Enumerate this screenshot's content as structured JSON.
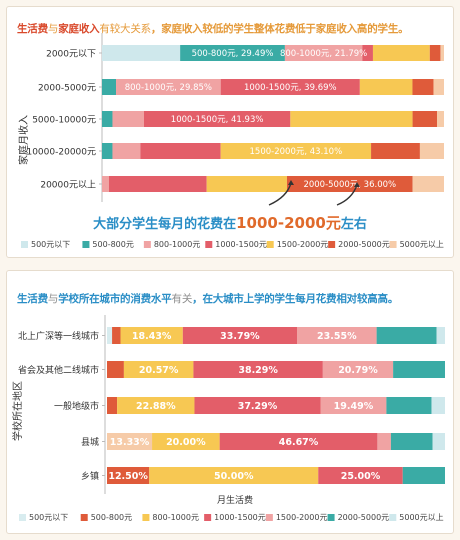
{
  "chart_data": [
    {
      "type": "bar",
      "stacked": "percent",
      "orientation": "horizontal",
      "headline_parts": [
        "生活费",
        "与",
        "家庭收入",
        "有较大关系",
        "，家庭收入较低的学生整体花费低于家庭收入高的学生。"
      ],
      "ylabel": "家庭月收入",
      "annotation": {
        "prefix": "大部分学生每月的花费在",
        "highlight": "1000-2000元",
        "suffix": "左右"
      },
      "legend_position": "bottom",
      "categories": [
        "2000元以下",
        "2000-5000元",
        "5000-10000元",
        "10000-20000元",
        "20000元以上"
      ],
      "series": [
        {
          "name": "500元以下",
          "color": "#cfe8ec",
          "values": [
            22.0,
            0.0,
            0.0,
            0.0,
            0.0
          ]
        },
        {
          "name": "500-800元",
          "color": "#3aaba5",
          "values": [
            29.49,
            4.0,
            3.0,
            3.0,
            0.0
          ]
        },
        {
          "name": "800-1000元",
          "color": "#f0a3a3",
          "values": [
            21.79,
            29.85,
            9.0,
            8.0,
            2.0
          ]
        },
        {
          "name": "1000-1500元",
          "color": "#e35e69",
          "values": [
            3.0,
            39.69,
            41.93,
            23.0,
            28.0
          ]
        },
        {
          "name": "1500-2000元",
          "color": "#f7c853",
          "values": [
            16.0,
            15.0,
            35.0,
            43.1,
            23.0
          ]
        },
        {
          "name": "2000-5000元",
          "color": "#df5b3a",
          "values": [
            3.0,
            6.0,
            7.0,
            14.0,
            36.0
          ]
        },
        {
          "name": "5000元以上",
          "color": "#f6cba8",
          "values": [
            1.0,
            3.0,
            2.0,
            6.9,
            9.0
          ]
        }
      ],
      "labels": [
        [
          {
            "series": 1,
            "text": "500-800元, 29.49%"
          },
          {
            "series": 2,
            "text": "800-1000元, 21.79%"
          }
        ],
        [
          {
            "series": 2,
            "text": "800-1000元, 29.85%"
          },
          {
            "series": 3,
            "text": "1000-1500元, 39.69%"
          }
        ],
        [
          {
            "series": 3,
            "text": "1000-1500元, 41.93%"
          }
        ],
        [
          {
            "series": 4,
            "text": "1500-2000元, 43.10%"
          }
        ],
        [
          {
            "series": 5,
            "text": "2000-5000元, 36.00%"
          }
        ]
      ]
    },
    {
      "type": "bar",
      "stacked": "percent",
      "orientation": "horizontal",
      "headline_parts": [
        "生活费",
        "与",
        "学校所在城市的消费水平",
        "有关",
        "，在大城市上学的学生每月花费相对较高高。"
      ],
      "ylabel": "学校所在地区",
      "xlabel": "月生活费",
      "legend_position": "bottom",
      "categories": [
        "北上广深等一线城市",
        "省会及其他二线城市",
        "一般地级市",
        "县城",
        "乡镇"
      ],
      "series": [
        {
          "name": "500元以下",
          "color": "#d8ecef",
          "values": [
            1.5,
            0.0,
            0.0,
            0.0,
            0.0
          ]
        },
        {
          "name": "500-800元",
          "color": "#df5b3a",
          "values": [
            2.5,
            5.0,
            3.0,
            0.0,
            12.5
          ]
        },
        {
          "name": "800-1000元",
          "color": "#f7c853",
          "values": [
            18.43,
            20.57,
            22.88,
            20.0,
            50.0
          ]
        },
        {
          "name": "1000-1500元",
          "color": "#e35e69",
          "values": [
            33.79,
            38.29,
            37.29,
            46.67,
            25.0
          ]
        },
        {
          "name": "1500-2000元",
          "color": "#f0a3a3",
          "values": [
            23.55,
            20.79,
            19.49,
            4.0,
            0.0
          ]
        },
        {
          "name": "2000-5000元",
          "color": "#3aaba5",
          "values": [
            17.73,
            15.35,
            13.34,
            12.33,
            12.5
          ]
        },
        {
          "name": "5000元以上",
          "color": "#cfe8ec",
          "values": [
            2.5,
            0.0,
            4.0,
            3.67,
            0.0
          ]
        }
      ],
      "prefix_series": [
        {
          "color": "#f6cba8",
          "values": [
            0.0,
            0.0,
            0.0,
            13.33,
            0.0
          ]
        }
      ],
      "labels": [
        [
          {
            "series": 2,
            "text": "18.43%"
          },
          {
            "series": 3,
            "text": "33.79%"
          },
          {
            "series": 4,
            "text": "23.55%"
          }
        ],
        [
          {
            "series": 2,
            "text": "20.57%"
          },
          {
            "series": 3,
            "text": "38.29%"
          },
          {
            "series": 4,
            "text": "20.79%"
          }
        ],
        [
          {
            "series": 2,
            "text": "22.88%"
          },
          {
            "series": 3,
            "text": "37.29%"
          },
          {
            "series": 4,
            "text": "19.49%"
          }
        ],
        [
          {
            "series": "p0",
            "text": "13.33%"
          },
          {
            "series": 2,
            "text": "20.00%"
          },
          {
            "series": 3,
            "text": "46.67%"
          }
        ],
        [
          {
            "series": 1,
            "text": "12.50%"
          },
          {
            "series": 2,
            "text": "50.00%"
          },
          {
            "series": 3,
            "text": "25.00%"
          }
        ]
      ]
    }
  ]
}
